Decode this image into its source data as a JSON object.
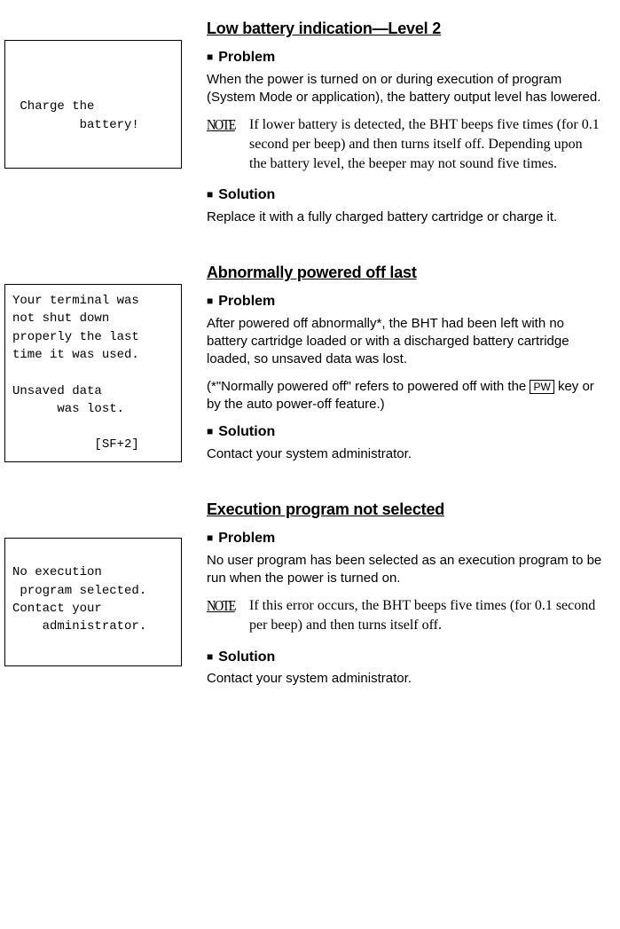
{
  "sections": [
    {
      "title": "Low battery indication—Level 2",
      "box_text": "\n Charge the\n         battery!",
      "box_class": "box1",
      "problem_label": "Problem",
      "problem_text": "When the power is turned on or during execution of program (System Mode or application), the battery output level has lowered.",
      "note_label": "NOTE",
      "note_text": "If lower battery is detected, the BHT beeps five times (for 0.1 second per beep) and then turns itself off.  Depending upon the battery level, the beeper may not sound five times.",
      "solution_label": "Solution",
      "solution_text": "Replace it with a fully charged battery cartridge or charge it."
    },
    {
      "title": "Abnormally powered off last",
      "box_text": "Your terminal was\nnot shut down\nproperly the last\ntime it was used.\n\nUnsaved data\n      was lost.\n\n           [SF+2]",
      "box_class": "",
      "problem_label": "Problem",
      "problem_text": "After powered off abnormally*, the BHT had been left with no battery cartridge loaded or with a discharged battery cartridge loaded, so unsaved data was lost.",
      "problem_text2_pre": "(*\"Normally powered off\" refers to powered off with the ",
      "problem_text2_pw": "PW",
      "problem_text2_post": " key or by the auto power-off feature.)",
      "solution_label": "Solution",
      "solution_text": "Contact your system administrator."
    },
    {
      "title": "Execution program not selected",
      "box_text": "\nNo execution\n program selected.\nContact your\n    administrator.",
      "box_class": "",
      "row_class": "row3",
      "problem_label": "Problem",
      "problem_text": "No user program has been selected as an execution program to be run when the power is turned on.",
      "note_label": "NOTE",
      "note_text": "If this error occurs, the BHT beeps five times (for 0.1 second per beep) and then turns itself off.",
      "solution_label": "Solution",
      "solution_text": "Contact your system administrator."
    }
  ]
}
